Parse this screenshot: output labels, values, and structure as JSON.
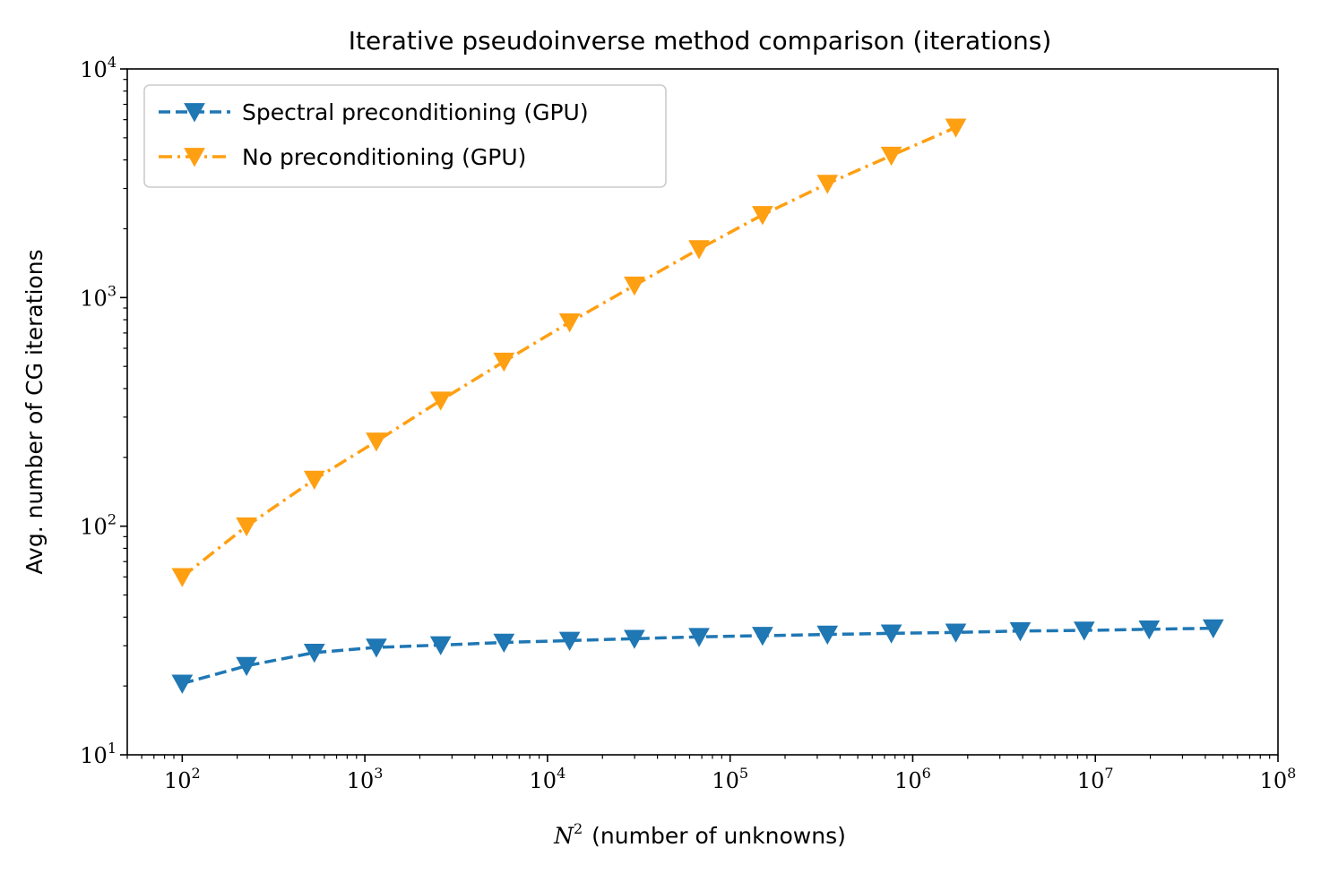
{
  "chart_data": {
    "type": "line",
    "title": "Iterative pseudoinverse method comparison (iterations)",
    "xlabel_math": "N",
    "xlabel_sup": "2",
    "xlabel_text": "(number of unknowns)",
    "ylabel": "Avg. number of CG iterations",
    "xscale": "log",
    "yscale": "log",
    "xlim": [
      50,
      100000000
    ],
    "ylim": [
      10,
      10000
    ],
    "x_major_ticks": [
      {
        "value": 100,
        "base": "10",
        "exp": "2"
      },
      {
        "value": 1000,
        "base": "10",
        "exp": "3"
      },
      {
        "value": 10000,
        "base": "10",
        "exp": "4"
      },
      {
        "value": 100000,
        "base": "10",
        "exp": "5"
      },
      {
        "value": 1000000,
        "base": "10",
        "exp": "6"
      },
      {
        "value": 10000000,
        "base": "10",
        "exp": "7"
      },
      {
        "value": 100000000,
        "base": "10",
        "exp": "8"
      }
    ],
    "y_major_ticks": [
      {
        "value": 10,
        "base": "10",
        "exp": "1"
      },
      {
        "value": 100,
        "base": "10",
        "exp": "2"
      },
      {
        "value": 1000,
        "base": "10",
        "exp": "3"
      },
      {
        "value": 10000,
        "base": "10",
        "exp": "4"
      }
    ],
    "grid": false,
    "legend_position": "top-left",
    "series": [
      {
        "name": "Spectral preconditioning (GPU)",
        "color": "#1f77b4",
        "linestyle": "dashed",
        "marker": "triangle-down",
        "x": [
          100,
          225,
          529,
          1156,
          2601,
          5776,
          13225,
          29929,
          67600,
          150544,
          341056,
          763876,
          1721344,
          3880900,
          8690704,
          19713600,
          44222500
        ],
        "y": [
          20.5,
          24.5,
          28,
          29.5,
          30.2,
          31,
          31.6,
          32.2,
          32.8,
          33.2,
          33.6,
          34,
          34.3,
          34.8,
          35,
          35.4,
          35.8
        ]
      },
      {
        "name": "No preconditioning (GPU)",
        "color": "#ff9f12",
        "linestyle": "dashdot",
        "marker": "triangle-down",
        "x": [
          100,
          225,
          529,
          1156,
          2601,
          5776,
          13225,
          29929,
          67600,
          150544,
          341056,
          763876,
          1721344
        ],
        "y": [
          60,
          100,
          160,
          235,
          355,
          525,
          780,
          1130,
          1630,
          2300,
          3150,
          4180,
          5550
        ]
      }
    ]
  }
}
